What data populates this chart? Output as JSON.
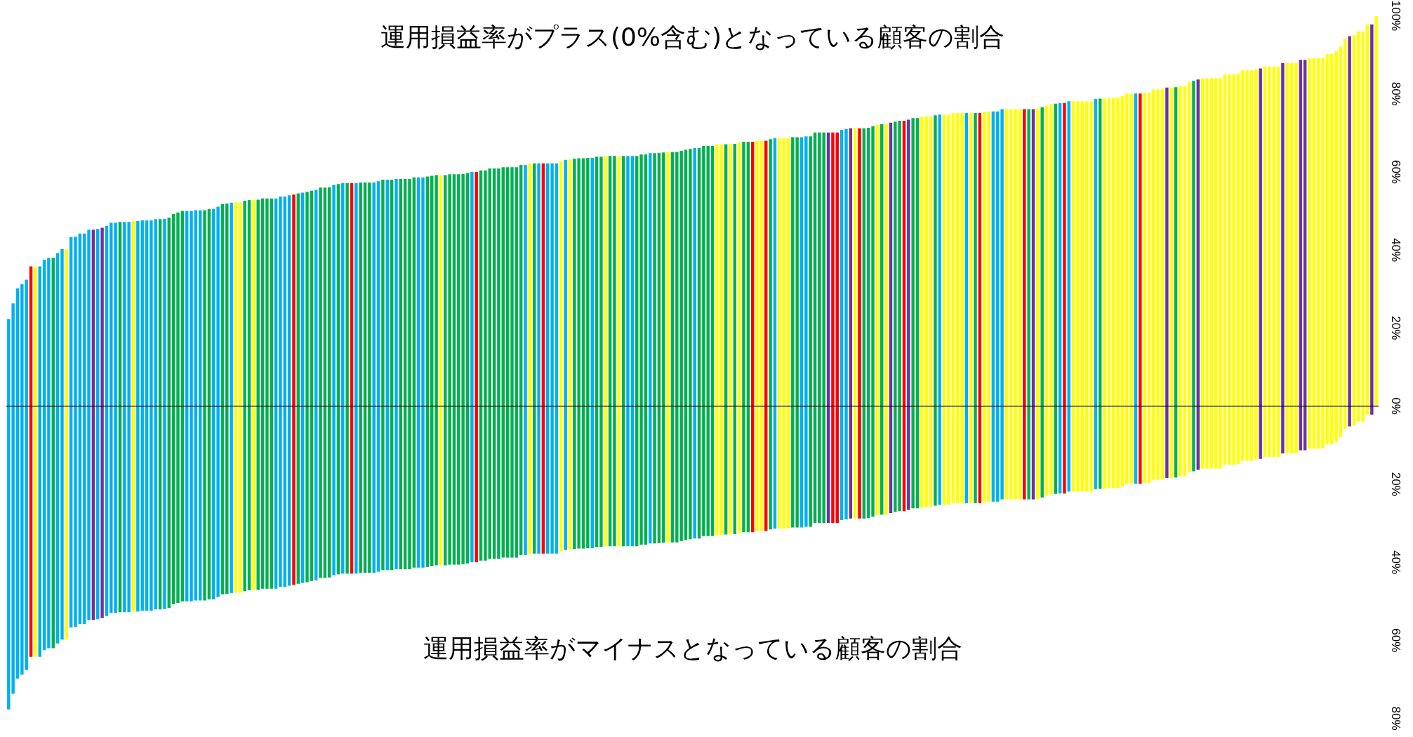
{
  "chart_data": {
    "type": "bar",
    "stacked": true,
    "annotations": [
      "運用損益率がプラス(0%含む)となっている顧客の割合",
      "運用損益率がマイナスとなっている顧客の割合"
    ],
    "categories": [
      null,
      null,
      null,
      null,
      null,
      null,
      null,
      null,
      null,
      null,
      null,
      null,
      null,
      null,
      null,
      null,
      null,
      null,
      null,
      null,
      null,
      null,
      null,
      null,
      null,
      null,
      null,
      null,
      null,
      null,
      null,
      null,
      null,
      null,
      null,
      null,
      null,
      null,
      null,
      null,
      null,
      null,
      null,
      null,
      null,
      null,
      null,
      null,
      null,
      null,
      null,
      null,
      null,
      null,
      null,
      null,
      null,
      null,
      null,
      null,
      null,
      null,
      null,
      null,
      null,
      null,
      null,
      null,
      null,
      null,
      null,
      null,
      null,
      null,
      null,
      null,
      null,
      null,
      null,
      null,
      null,
      null,
      null,
      null,
      null,
      null,
      null,
      null,
      null,
      null,
      null,
      null,
      null,
      null,
      null,
      null,
      null,
      null,
      null,
      null,
      null,
      null,
      null,
      null,
      null,
      null,
      null,
      null,
      null,
      null,
      null,
      null,
      null,
      null,
      null,
      null,
      null,
      null,
      null,
      null,
      null,
      null,
      null,
      null,
      null,
      null,
      null,
      null,
      null,
      null,
      null,
      null,
      null,
      null,
      null,
      null,
      null,
      null,
      null,
      null,
      null,
      null,
      null,
      null,
      null,
      null,
      null,
      null,
      null,
      null,
      null,
      null,
      null,
      null,
      null,
      null,
      null,
      null,
      null,
      null,
      null,
      null,
      null,
      null,
      null,
      null,
      null,
      null,
      null,
      null,
      null,
      null,
      null,
      null,
      null,
      null,
      null,
      null,
      null,
      null,
      null,
      null,
      null,
      null,
      null,
      null,
      null,
      null,
      null,
      null,
      null,
      null,
      null,
      null,
      null,
      null,
      null,
      null,
      null,
      null,
      null,
      null,
      null,
      null,
      null,
      null,
      null,
      null,
      null,
      null,
      null,
      null,
      null,
      null,
      null,
      null,
      null,
      null,
      null,
      null,
      null,
      null,
      null,
      null,
      null,
      null,
      null,
      null,
      null,
      null,
      null,
      null,
      null,
      null,
      null,
      null,
      null,
      null,
      null,
      null,
      null,
      null,
      null,
      null,
      null,
      null,
      null,
      null,
      null,
      null,
      null,
      null,
      null,
      null,
      null,
      null,
      null,
      null,
      null,
      null,
      null,
      null,
      null,
      null,
      null,
      null,
      null,
      null,
      null,
      null,
      null,
      null,
      null,
      null,
      null,
      null,
      null,
      null,
      null,
      null,
      null,
      null,
      null,
      null,
      null,
      null,
      null,
      null,
      null,
      null,
      null,
      null,
      null,
      null,
      null,
      null,
      null,
      null,
      null,
      null,
      null,
      null,
      null,
      null,
      null,
      null,
      null,
      null
    ],
    "series": [
      {
        "colors": [
          "#00b0f0",
          "#00b0f0",
          "#00b0f0",
          "#00b0f0",
          "#00b0f0",
          "#ff0000",
          "#ffff00",
          "#00b0f0",
          "#00b0f0",
          "#00b0f0",
          "#00b050",
          "#00b0f0",
          "#00b0f0",
          "#ffff00",
          "#00b0f0",
          "#00b0f0",
          "#00b0f0",
          "#00b0f0",
          "#00b0f0",
          "#7030a0",
          "#00b0f0",
          "#7030a0",
          "#00b0f0",
          "#00b0f0",
          "#00b0f0",
          "#00b050",
          "#00b0f0",
          "#00b0f0",
          "#ffff00",
          "#00b0f0",
          "#00b0f0",
          "#00b0f0",
          "#00b0f0",
          "#00b0f0",
          "#00b050",
          "#00b0f0",
          "#00b050",
          "#00b050",
          "#00b050",
          "#00b050",
          "#00b0f0",
          "#00b0f0",
          "#00b0f0",
          "#00b0f0",
          "#00b050",
          "#00b050",
          "#00b0f0",
          "#00b0f0",
          "#00b050",
          "#00b050",
          "#00b0f0",
          "#ffff00",
          "#ffff00",
          "#00b050",
          "#00b050",
          "#ffff00",
          "#00b050",
          "#00b050",
          "#00b050",
          "#00b050",
          "#00b0f0",
          "#00b0f0",
          "#00b0f0",
          "#00b0f0",
          "#ff0000",
          "#00b050",
          "#00b0f0",
          "#00b050",
          "#00b050",
          "#00b0f0",
          "#00b050",
          "#00b050",
          "#00b050",
          "#00b0f0",
          "#00b050",
          "#00b0f0",
          "#00b050",
          "#ff0000",
          "#00b0f0",
          "#00b050",
          "#00b050",
          "#00b050",
          "#00b0f0",
          "#00b0f0",
          "#00b050",
          "#00b0f0",
          "#00b050",
          "#00b0f0",
          "#00b050",
          "#00b050",
          "#00b050",
          "#00b050",
          "#00b0f0",
          "#00b0f0",
          "#00b050",
          "#00b050",
          "#00b050",
          "#ffff00",
          "#00b050",
          "#00b050",
          "#00b050",
          "#00b050",
          "#00b050",
          "#00b050",
          "#00b0f0",
          "#ff0000",
          "#00b050",
          "#00b050",
          "#00b050",
          "#00b050",
          "#00b050",
          "#00b050",
          "#00b050",
          "#00b050",
          "#00b050",
          "#00b050",
          "#00b0f0",
          "#ffff00",
          "#00b050",
          "#00b0f0",
          "#ff0000",
          "#00b0f0",
          "#00b0f0",
          "#00b0f0",
          "#ffff00",
          "#00b0f0",
          "#ffff00",
          "#00b050",
          "#00b050",
          "#00b050",
          "#00b050",
          "#00b0f0",
          "#00b050",
          "#00b050",
          "#ffff00",
          "#00b050",
          "#00b050",
          "#ffff00",
          "#00b050",
          "#00b0f0",
          "#00b0f0",
          "#00b050",
          "#00b050",
          "#00b050",
          "#00b0f0",
          "#00b050",
          "#00b050",
          "#00b050",
          "#ffff00",
          "#00b050",
          "#00b050",
          "#00b050",
          "#00b050",
          "#00b050",
          "#00b0f0",
          "#00b050",
          "#00b050",
          "#00b050",
          "#00b050",
          "#ffff00",
          "#ffff00",
          "#00b050",
          "#ffff00",
          "#00b050",
          "#ffff00",
          "#00b050",
          "#00b050",
          "#ff0000",
          "#ffff00",
          "#ffff00",
          "#ff0000",
          "#00b050",
          "#00b0f0",
          "#ffff00",
          "#ffff00",
          "#ffff00",
          "#00b050",
          "#00b050",
          "#00b0f0",
          "#00b0f0",
          "#00b050",
          "#00b050",
          "#00b050",
          "#00b050",
          "#7030a0",
          "#ff0000",
          "#ff0000",
          "#00b0f0",
          "#00b0f0",
          "#7030a0",
          "#ffff00",
          "#ff0000",
          "#00b050",
          "#00b050",
          "#00b050",
          "#ffff00",
          "#00b050",
          "#ffff00",
          "#7030a0",
          "#00b050",
          "#00b050",
          "#ff0000",
          "#7030a0",
          "#00b050",
          "#00b050",
          "#ffff00",
          "#ffff00",
          "#ffff00",
          "#00b050",
          "#00b0f0",
          "#ffff00",
          "#ffff00",
          "#ffff00",
          "#ffff00",
          "#ffff00",
          "#00b0f0",
          "#ffff00",
          "#00b050",
          "#ff0000",
          "#ffff00",
          "#ffff00",
          "#00b0f0",
          "#00b0f0",
          "#00b0f0",
          "#ffff00",
          "#ffff00",
          "#ffff00",
          "#ffff00",
          "#ff0000",
          "#00b050",
          "#7030a0",
          "#ffff00",
          "#00b050",
          "#ffff00",
          "#ffff00",
          "#00b050",
          "#00b0f0",
          "#ff0000",
          "#00b0f0",
          "#ffff00",
          "#ffff00",
          "#ffff00",
          "#ffff00",
          "#ffff00",
          "#00b0f0",
          "#00b050",
          "#ffff00",
          "#ffff00",
          "#ffff00",
          "#ffff00",
          "#ffff00",
          "#ffff00",
          "#ffff00",
          "#00b0f0",
          "#ff0000",
          "#ffff00",
          "#ffff00",
          "#ffff00",
          "#ffff00",
          "#ffff00",
          "#7030a0",
          "#ffff00",
          "#00b050",
          "#ffff00",
          "#ffff00",
          "#ffff00",
          "#00b050",
          "#7030a0",
          "#ffff00",
          "#ffff00",
          "#ffff00",
          "#ffff00",
          "#ffff00",
          "#ffff00",
          "#ffff00",
          "#ffff00",
          "#ffff00",
          "#ffff00",
          "#ffff00",
          "#ffff00",
          "#ffff00",
          "#7030a0",
          "#ffff00",
          "#ffff00",
          "#ffff00",
          "#ffff00",
          "#7030a0",
          "#ffff00",
          "#ffff00",
          "#ffff00",
          "#7030a0",
          "#7030a0",
          "#ffff00",
          "#ffff00",
          "#ffff00",
          "#ffff00",
          "#ffff00",
          "#ffff00",
          "#ffff00",
          "#ffff00",
          "#ffff00",
          "#7030a0",
          "#ffff00",
          "#ffff00",
          "#ffff00",
          "#ffff00",
          "#7030a0",
          "#ffff00"
        ],
        "values": [
          22.3,
          26.3,
          30.2,
          31.2,
          32.4,
          35.8,
          35.8,
          35.8,
          37.5,
          38.0,
          38.0,
          39.2,
          40.2,
          40.2,
          43.3,
          43.4,
          44.2,
          44.2,
          45.2,
          45.2,
          45.4,
          45.7,
          46.2,
          47.0,
          47.0,
          47.2,
          47.2,
          47.2,
          47.4,
          47.4,
          47.6,
          47.6,
          47.6,
          47.9,
          47.9,
          48.0,
          48.3,
          49.2,
          49.6,
          50.0,
          50.0,
          50.0,
          50.2,
          50.2,
          50.2,
          50.5,
          50.5,
          51.1,
          51.8,
          51.9,
          52.1,
          52.2,
          52.2,
          52.6,
          52.8,
          52.9,
          52.9,
          53.2,
          53.2,
          53.2,
          53.2,
          53.7,
          53.7,
          54.0,
          54.2,
          54.5,
          54.7,
          54.9,
          55.2,
          55.4,
          56.0,
          56.0,
          56.1,
          56.7,
          56.9,
          57.1,
          57.1,
          57.1,
          57.1,
          57.3,
          57.3,
          57.3,
          57.3,
          57.6,
          58.0,
          58.0,
          58.0,
          58.2,
          58.2,
          58.2,
          58.2,
          58.6,
          58.6,
          58.6,
          58.8,
          59.0,
          59.2,
          59.2,
          59.2,
          59.4,
          59.4,
          59.4,
          59.5,
          59.7,
          60.0,
          60.0,
          60.4,
          60.4,
          60.9,
          60.9,
          60.9,
          61.2,
          61.2,
          61.2,
          61.2,
          61.8,
          61.8,
          62.2,
          62.2,
          62.2,
          62.2,
          62.2,
          62.2,
          62.2,
          62.8,
          63.1,
          63.2,
          63.4,
          63.5,
          63.5,
          63.6,
          63.6,
          63.9,
          63.9,
          64.1,
          64.1,
          64.1,
          64.1,
          64.1,
          64.1,
          64.1,
          64.1,
          64.5,
          64.5,
          64.8,
          64.8,
          64.9,
          65.0,
          65.1,
          65.1,
          65.1,
          65.4,
          65.7,
          65.9,
          66.1,
          66.1,
          66.7,
          66.7,
          66.7,
          67.0,
          67.0,
          67.1,
          67.2,
          67.2,
          67.5,
          67.7,
          67.7,
          67.7,
          68.0,
          68.0,
          68.0,
          68.4,
          68.6,
          68.6,
          68.6,
          68.7,
          68.9,
          68.9,
          68.9,
          69.1,
          69.1,
          70.1,
          70.1,
          70.1,
          70.1,
          70.1,
          70.1,
          70.8,
          71.0,
          71.2,
          71.2,
          71.2,
          71.2,
          71.3,
          71.7,
          72.1,
          72.2,
          72.2,
          72.6,
          72.9,
          73.1,
          73.1,
          73.4,
          73.8,
          73.8,
          74.0,
          74.2,
          74.2,
          74.5,
          74.7,
          74.7,
          74.7,
          75.1,
          75.1,
          75.1,
          75.1,
          75.1,
          75.1,
          75.1,
          75.3,
          75.5,
          75.5,
          75.5,
          76.1,
          76.1,
          76.1,
          76.1,
          76.1,
          76.1,
          76.1,
          76.1,
          76.2,
          76.6,
          77.0,
          77.4,
          77.5,
          77.6,
          77.6,
          78.1,
          78.1,
          78.1,
          78.1,
          78.1,
          78.1,
          78.7,
          78.8,
          78.8,
          79.0,
          79.0,
          79.0,
          79.4,
          80.1,
          80.1,
          80.1,
          80.1,
          80.3,
          80.3,
          81.1,
          81.1,
          81.3,
          81.6,
          81.6,
          81.7,
          82.0,
          82.0,
          83.1,
          83.3,
          83.7,
          84.0,
          84.0,
          84.0,
          84.0,
          84.0,
          85.0,
          85.0,
          85.0,
          85.2,
          86.0,
          86.0,
          86.0,
          86.3,
          86.5,
          87.0,
          87.0,
          87.0,
          87.0,
          87.9,
          87.9,
          87.9,
          87.9,
          88.7,
          88.7,
          89.1,
          89.1,
          89.1,
          89.2,
          90.2,
          90.2,
          90.9,
          92.1,
          94.1,
          94.8,
          95.0,
          96.0,
          96.0,
          97.8,
          97.8,
          100.0
        ]
      },
      {
        "colors": [
          "#00b0f0",
          "#00b0f0",
          "#00b0f0",
          "#00b0f0",
          "#00b0f0",
          "#ff0000",
          "#ffff00",
          "#00b0f0",
          "#00b0f0",
          "#00b0f0",
          "#00b050",
          "#00b0f0",
          "#00b0f0",
          "#ffff00",
          "#00b0f0",
          "#00b0f0",
          "#00b0f0",
          "#00b0f0",
          "#00b0f0",
          "#7030a0",
          "#00b0f0",
          "#7030a0",
          "#00b0f0",
          "#00b0f0",
          "#00b0f0",
          "#00b050",
          "#00b0f0",
          "#00b0f0",
          "#ffff00",
          "#00b0f0",
          "#00b0f0",
          "#00b0f0",
          "#00b0f0",
          "#00b0f0",
          "#00b050",
          "#00b0f0",
          "#00b050",
          "#00b050",
          "#00b050",
          "#00b050",
          "#00b0f0",
          "#00b0f0",
          "#00b0f0",
          "#00b0f0",
          "#00b050",
          "#00b050",
          "#00b0f0",
          "#00b0f0",
          "#00b050",
          "#00b050",
          "#00b0f0",
          "#ffff00",
          "#ffff00",
          "#00b050",
          "#00b050",
          "#ffff00",
          "#00b050",
          "#00b050",
          "#00b050",
          "#00b050",
          "#00b0f0",
          "#00b0f0",
          "#00b0f0",
          "#00b0f0",
          "#ff0000",
          "#00b050",
          "#00b0f0",
          "#00b050",
          "#00b050",
          "#00b0f0",
          "#00b050",
          "#00b050",
          "#00b050",
          "#00b0f0",
          "#00b050",
          "#00b0f0",
          "#00b050",
          "#ff0000",
          "#00b0f0",
          "#00b050",
          "#00b050",
          "#00b050",
          "#00b0f0",
          "#00b0f0",
          "#00b050",
          "#00b0f0",
          "#00b050",
          "#00b0f0",
          "#00b050",
          "#00b050",
          "#00b050",
          "#00b050",
          "#00b0f0",
          "#00b0f0",
          "#00b050",
          "#00b050",
          "#00b050",
          "#ffff00",
          "#00b050",
          "#00b050",
          "#00b050",
          "#00b050",
          "#00b050",
          "#00b050",
          "#00b0f0",
          "#ff0000",
          "#00b050",
          "#00b050",
          "#00b050",
          "#00b050",
          "#00b050",
          "#00b050",
          "#00b050",
          "#00b050",
          "#00b050",
          "#00b050",
          "#00b0f0",
          "#ffff00",
          "#00b050",
          "#00b0f0",
          "#ff0000",
          "#00b0f0",
          "#00b0f0",
          "#00b0f0",
          "#ffff00",
          "#00b0f0",
          "#ffff00",
          "#00b050",
          "#00b050",
          "#00b050",
          "#00b050",
          "#00b0f0",
          "#00b050",
          "#00b050",
          "#ffff00",
          "#00b050",
          "#00b050",
          "#ffff00",
          "#00b050",
          "#00b0f0",
          "#00b0f0",
          "#00b050",
          "#00b050",
          "#00b050",
          "#00b0f0",
          "#00b050",
          "#00b050",
          "#00b050",
          "#ffff00",
          "#00b050",
          "#00b050",
          "#00b050",
          "#00b050",
          "#00b050",
          "#00b0f0",
          "#00b050",
          "#00b050",
          "#00b050",
          "#00b050",
          "#ffff00",
          "#ffff00",
          "#00b050",
          "#ffff00",
          "#00b050",
          "#ffff00",
          "#00b050",
          "#00b050",
          "#ff0000",
          "#ffff00",
          "#ffff00",
          "#ff0000",
          "#00b050",
          "#00b0f0",
          "#ffff00",
          "#ffff00",
          "#ffff00",
          "#00b050",
          "#00b050",
          "#00b0f0",
          "#00b0f0",
          "#00b050",
          "#00b050",
          "#00b050",
          "#00b050",
          "#7030a0",
          "#ff0000",
          "#ff0000",
          "#00b0f0",
          "#00b0f0",
          "#7030a0",
          "#ffff00",
          "#ff0000",
          "#00b050",
          "#00b050",
          "#00b050",
          "#ffff00",
          "#00b050",
          "#ffff00",
          "#7030a0",
          "#00b050",
          "#00b050",
          "#ff0000",
          "#7030a0",
          "#00b050",
          "#00b050",
          "#ffff00",
          "#ffff00",
          "#ffff00",
          "#00b050",
          "#00b0f0",
          "#ffff00",
          "#ffff00",
          "#ffff00",
          "#ffff00",
          "#ffff00",
          "#00b0f0",
          "#ffff00",
          "#00b050",
          "#ff0000",
          "#ffff00",
          "#ffff00",
          "#00b0f0",
          "#00b0f0",
          "#00b0f0",
          "#ffff00",
          "#ffff00",
          "#ffff00",
          "#ffff00",
          "#ff0000",
          "#00b050",
          "#7030a0",
          "#ffff00",
          "#00b050",
          "#ffff00",
          "#ffff00",
          "#00b050",
          "#00b0f0",
          "#ff0000",
          "#00b0f0",
          "#ffff00",
          "#ffff00",
          "#ffff00",
          "#ffff00",
          "#ffff00",
          "#00b0f0",
          "#00b050",
          "#ffff00",
          "#ffff00",
          "#ffff00",
          "#ffff00",
          "#ffff00",
          "#ffff00",
          "#ffff00",
          "#00b0f0",
          "#ff0000",
          "#ffff00",
          "#ffff00",
          "#ffff00",
          "#ffff00",
          "#ffff00",
          "#7030a0",
          "#ffff00",
          "#00b050",
          "#ffff00",
          "#ffff00",
          "#ffff00",
          "#00b050",
          "#7030a0",
          "#ffff00",
          "#ffff00",
          "#ffff00",
          "#ffff00",
          "#ffff00",
          "#ffff00",
          "#ffff00",
          "#ffff00",
          "#ffff00",
          "#ffff00",
          "#ffff00",
          "#ffff00",
          "#ffff00",
          "#7030a0",
          "#ffff00",
          "#ffff00",
          "#ffff00",
          "#ffff00",
          "#7030a0",
          "#ffff00",
          "#ffff00",
          "#ffff00",
          "#7030a0",
          "#7030a0",
          "#ffff00",
          "#ffff00",
          "#ffff00",
          "#ffff00",
          "#ffff00",
          "#ffff00",
          "#ffff00",
          "#ffff00",
          "#ffff00",
          "#7030a0",
          "#ffff00",
          "#ffff00",
          "#ffff00",
          "#ffff00",
          "#7030a0",
          "#ffff00"
        ],
        "values": [
          -77.7,
          -73.7,
          -69.8,
          -68.8,
          -67.6,
          -64.2,
          -64.2,
          -64.2,
          -62.5,
          -62.0,
          -62.0,
          -60.8,
          -59.8,
          -59.8,
          -56.7,
          -56.6,
          -55.8,
          -55.8,
          -54.8,
          -54.8,
          -54.6,
          -54.3,
          -53.8,
          -53.0,
          -53.0,
          -52.8,
          -52.8,
          -52.8,
          -52.6,
          -52.6,
          -52.4,
          -52.4,
          -52.4,
          -52.1,
          -52.1,
          -52.0,
          -51.7,
          -50.8,
          -50.4,
          -50.0,
          -50.0,
          -50.0,
          -49.8,
          -49.8,
          -49.8,
          -49.5,
          -49.5,
          -48.9,
          -48.2,
          -48.1,
          -47.9,
          -47.8,
          -47.8,
          -47.4,
          -47.2,
          -47.1,
          -47.1,
          -46.8,
          -46.8,
          -46.8,
          -46.8,
          -46.3,
          -46.3,
          -46.0,
          -45.8,
          -45.5,
          -45.3,
          -45.1,
          -44.8,
          -44.6,
          -44.0,
          -44.0,
          -43.9,
          -43.3,
          -43.1,
          -42.9,
          -42.9,
          -42.9,
          -42.9,
          -42.7,
          -42.7,
          -42.7,
          -42.7,
          -42.4,
          -42.0,
          -42.0,
          -42.0,
          -41.8,
          -41.8,
          -41.8,
          -41.8,
          -41.4,
          -41.4,
          -41.4,
          -41.2,
          -41.0,
          -40.8,
          -40.8,
          -40.8,
          -40.6,
          -40.6,
          -40.6,
          -40.5,
          -40.3,
          -40.0,
          -40.0,
          -39.6,
          -39.6,
          -39.1,
          -39.1,
          -39.1,
          -38.8,
          -38.8,
          -38.8,
          -38.8,
          -38.2,
          -38.2,
          -37.8,
          -37.8,
          -37.8,
          -37.8,
          -37.8,
          -37.8,
          -37.8,
          -37.2,
          -36.9,
          -36.8,
          -36.6,
          -36.5,
          -36.5,
          -36.4,
          -36.4,
          -36.1,
          -36.1,
          -35.9,
          -35.9,
          -35.9,
          -35.9,
          -35.9,
          -35.9,
          -35.9,
          -35.9,
          -35.5,
          -35.5,
          -35.2,
          -35.2,
          -35.1,
          -35.0,
          -34.9,
          -34.9,
          -34.9,
          -34.6,
          -34.3,
          -34.1,
          -33.9,
          -33.9,
          -33.3,
          -33.3,
          -33.3,
          -33.0,
          -33.0,
          -32.9,
          -32.8,
          -32.8,
          -32.5,
          -32.3,
          -32.3,
          -32.3,
          -32.0,
          -32.0,
          -32.0,
          -31.6,
          -31.4,
          -31.4,
          -31.4,
          -31.3,
          -31.1,
          -31.1,
          -31.1,
          -30.9,
          -30.9,
          -29.9,
          -29.9,
          -29.9,
          -29.9,
          -29.9,
          -29.9,
          -29.2,
          -29.0,
          -28.8,
          -28.8,
          -28.8,
          -28.8,
          -28.7,
          -28.3,
          -27.9,
          -27.8,
          -27.8,
          -27.4,
          -27.1,
          -26.9,
          -26.9,
          -26.6,
          -26.2,
          -26.2,
          -26.0,
          -25.8,
          -25.8,
          -25.5,
          -25.3,
          -25.3,
          -25.3,
          -24.9,
          -24.9,
          -24.9,
          -24.9,
          -24.9,
          -24.9,
          -24.9,
          -24.7,
          -24.5,
          -24.5,
          -24.5,
          -23.9,
          -23.9,
          -23.9,
          -23.9,
          -23.9,
          -23.9,
          -23.9,
          -23.9,
          -23.8,
          -23.4,
          -23.0,
          -22.6,
          -22.5,
          -22.4,
          -22.4,
          -21.9,
          -21.9,
          -21.9,
          -21.9,
          -21.9,
          -21.9,
          -21.3,
          -21.2,
          -21.2,
          -21.0,
          -21.0,
          -21.0,
          -20.6,
          -19.9,
          -19.9,
          -19.9,
          -19.9,
          -19.7,
          -19.7,
          -18.9,
          -18.9,
          -18.7,
          -18.4,
          -18.4,
          -18.3,
          -18.0,
          -18.0,
          -16.9,
          -16.7,
          -16.3,
          -16.0,
          -16.0,
          -16.0,
          -16.0,
          -16.0,
          -15.0,
          -15.0,
          -15.0,
          -14.8,
          -14.0,
          -14.0,
          -14.0,
          -13.7,
          -13.5,
          -13.0,
          -13.0,
          -13.0,
          -13.0,
          -12.1,
          -12.1,
          -12.1,
          -12.1,
          -11.3,
          -11.3,
          -10.9,
          -10.9,
          -10.9,
          -10.8,
          -9.8,
          -9.8,
          -9.1,
          -7.9,
          -5.9,
          -5.2,
          -5.0,
          -4.0,
          -4.0,
          -2.2,
          -2.2,
          0.0
        ]
      }
    ],
    "ylim": [
      -80,
      100
    ],
    "yticks": [
      {
        "value": 100,
        "label": "100%"
      },
      {
        "value": 80,
        "label": "80%"
      },
      {
        "value": 60,
        "label": "60%"
      },
      {
        "value": 40,
        "label": "40%"
      },
      {
        "value": 20,
        "label": "20%"
      },
      {
        "value": 0,
        "label": "0%"
      },
      {
        "value": -20,
        "label": "20%"
      },
      {
        "value": -40,
        "label": "40%"
      },
      {
        "value": -60,
        "label": "60%"
      },
      {
        "value": -80,
        "label": "80%"
      }
    ],
    "ref_lines": [
      {
        "axis": "y",
        "value": 0,
        "color": "#000000"
      }
    ],
    "tick_labels": "y"
  }
}
